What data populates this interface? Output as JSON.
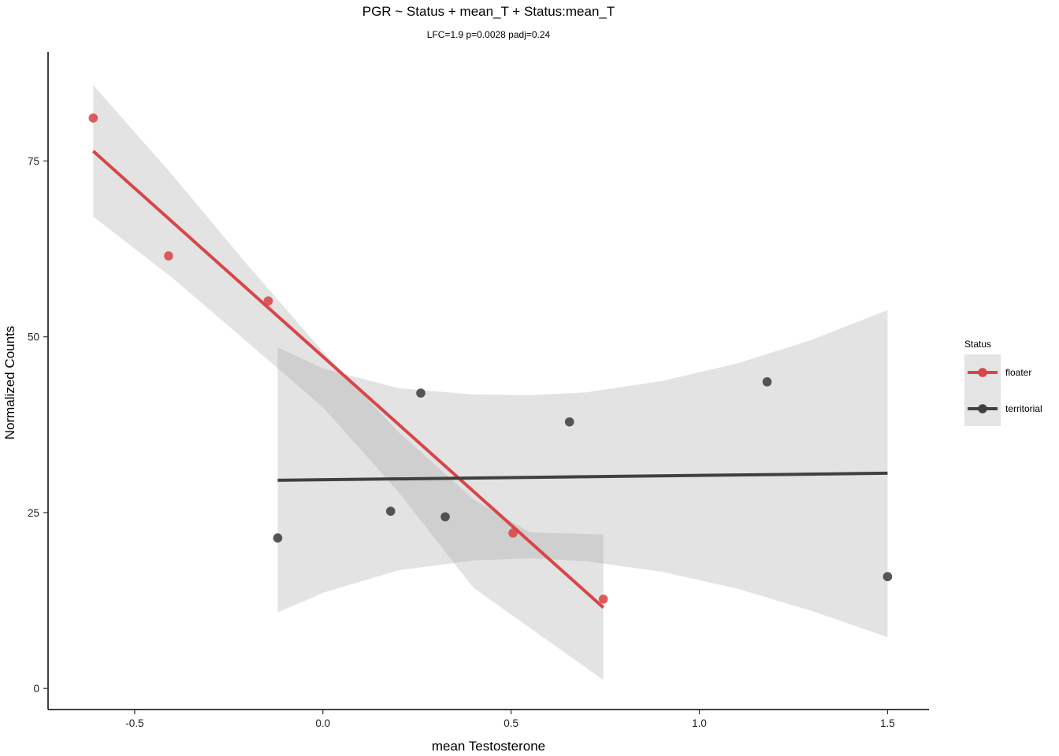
{
  "chart_data": {
    "type": "scatter",
    "title": "PGR ~ Status + mean_T + Status:mean_T",
    "subtitle": "LFC=1.9 p=0.0028 padj=0.24",
    "xlabel": "mean Testosterone",
    "ylabel": "Normalized Counts",
    "xlim": [
      -0.73,
      1.61
    ],
    "ylim": [
      -3.0,
      90.5
    ],
    "x_ticks": [
      -0.5,
      0.0,
      0.5,
      1.0,
      1.5
    ],
    "x_tick_labels": [
      "-0.5",
      "0.0",
      "0.5",
      "1.0",
      "1.5"
    ],
    "y_ticks": [
      0,
      25,
      50,
      75
    ],
    "y_tick_labels": [
      "0",
      "25",
      "50",
      "75"
    ],
    "grid": false,
    "legend": {
      "title": "Status",
      "position": "right"
    },
    "series": [
      {
        "name": "floater",
        "color": "#d94548",
        "points": [
          {
            "x": -0.61,
            "y": 81.1
          },
          {
            "x": -0.41,
            "y": 61.5
          },
          {
            "x": -0.145,
            "y": 55.1
          },
          {
            "x": 0.505,
            "y": 22.1
          },
          {
            "x": 0.745,
            "y": 12.7
          }
        ],
        "fit": [
          {
            "x": -0.61,
            "y": 76.4
          },
          {
            "x": 0.745,
            "y": 11.5
          }
        ],
        "band": {
          "x": [
            -0.61,
            -0.4,
            -0.2,
            0.0,
            0.2,
            0.4,
            0.55,
            0.745
          ],
          "upper": [
            85.8,
            73.0,
            60.2,
            47.9,
            36.5,
            26.9,
            22.2,
            21.9
          ],
          "lower": [
            67.1,
            58.4,
            49.2,
            40.0,
            28.0,
            14.3,
            8.6,
            1.2
          ]
        }
      },
      {
        "name": "territorial",
        "color": "#404040",
        "points": [
          {
            "x": -0.12,
            "y": 21.4
          },
          {
            "x": 0.18,
            "y": 25.2
          },
          {
            "x": 0.26,
            "y": 42.0
          },
          {
            "x": 0.325,
            "y": 24.4
          },
          {
            "x": 0.655,
            "y": 37.9
          },
          {
            "x": 1.18,
            "y": 43.6
          },
          {
            "x": 1.5,
            "y": 15.9
          }
        ],
        "fit": [
          {
            "x": -0.12,
            "y": 29.6
          },
          {
            "x": 1.5,
            "y": 30.6
          }
        ],
        "band": {
          "x": [
            -0.12,
            0.0,
            0.2,
            0.4,
            0.55,
            0.7,
            0.9,
            1.1,
            1.3,
            1.5
          ],
          "upper": [
            48.5,
            45.5,
            42.7,
            41.8,
            41.7,
            42.1,
            43.7,
            46.2,
            49.6,
            53.8
          ],
          "lower": [
            10.8,
            13.6,
            16.8,
            18.2,
            18.5,
            18.1,
            16.6,
            14.2,
            11.0,
            7.3
          ]
        }
      }
    ]
  }
}
